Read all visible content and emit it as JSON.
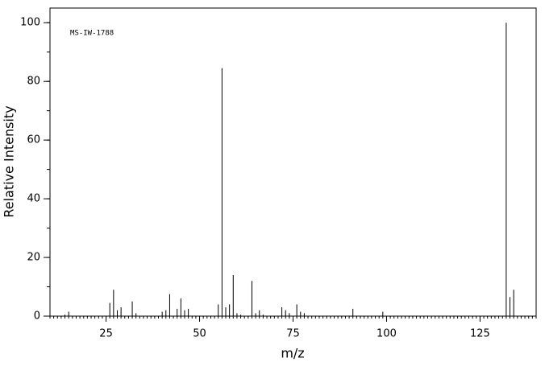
{
  "chart_data": {
    "type": "spectrum",
    "annotation": "MS-IW-1788",
    "xlabel": "m/z",
    "ylabel": "Relative Intensity",
    "x": [
      14,
      15,
      26,
      27,
      28,
      29,
      32,
      33,
      40,
      41,
      42,
      44,
      45,
      46,
      47,
      55,
      56,
      57,
      58,
      59,
      60,
      61,
      64,
      65,
      66,
      67,
      72,
      73,
      74,
      76,
      77,
      78,
      91,
      99,
      132,
      133,
      134
    ],
    "values": [
      0.5,
      1.5,
      4.5,
      9,
      2,
      3,
      5,
      1,
      1.5,
      2,
      7.5,
      2.5,
      6,
      2,
      2.5,
      4,
      84.5,
      3,
      4,
      14,
      1,
      0.5,
      12,
      1,
      2,
      0.5,
      3,
      2,
      1,
      4,
      1.5,
      1,
      2.5,
      1.5,
      100,
      6.5,
      9
    ],
    "color": "#000000",
    "xlim": [
      10,
      140
    ],
    "xticks": [
      25,
      50,
      75,
      100,
      125
    ],
    "x_minor_tick_step": 1,
    "ylim": [
      0,
      105
    ],
    "yticks": [
      0,
      20,
      40,
      60,
      80,
      100
    ],
    "y_minor_tick_step": 10
  }
}
